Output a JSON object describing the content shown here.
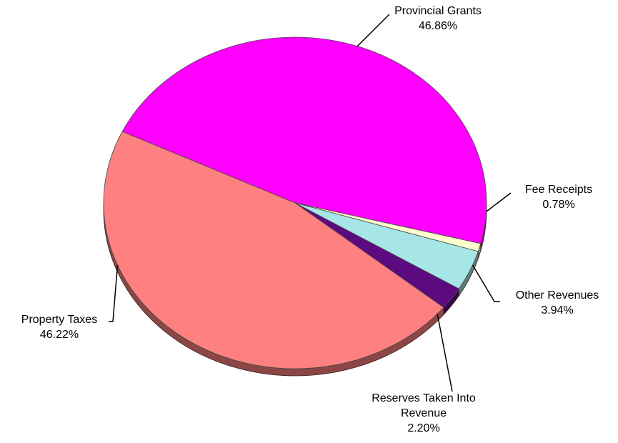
{
  "chart_data": {
    "type": "pie",
    "style": "3d-tilted",
    "slices": [
      {
        "label": "Provincial Grants",
        "value": 46.86,
        "value_text": "46.86%",
        "color": "#ff00ff"
      },
      {
        "label": "Fee Receipts",
        "value": 0.78,
        "value_text": "0.78%",
        "color": "#ffffcc"
      },
      {
        "label": "Other Revenues",
        "value": 3.94,
        "value_text": "3.94%",
        "color": "#a6e6e6"
      },
      {
        "label": "Reserves Taken Into Revenue",
        "label_lines": [
          "Reserves Taken Into",
          "Revenue"
        ],
        "value": 2.2,
        "value_text": "2.20%",
        "color": "#5c0a80"
      },
      {
        "label": "Property Taxes",
        "value": 46.22,
        "value_text": "46.22%",
        "color": "#ff8080"
      }
    ]
  }
}
